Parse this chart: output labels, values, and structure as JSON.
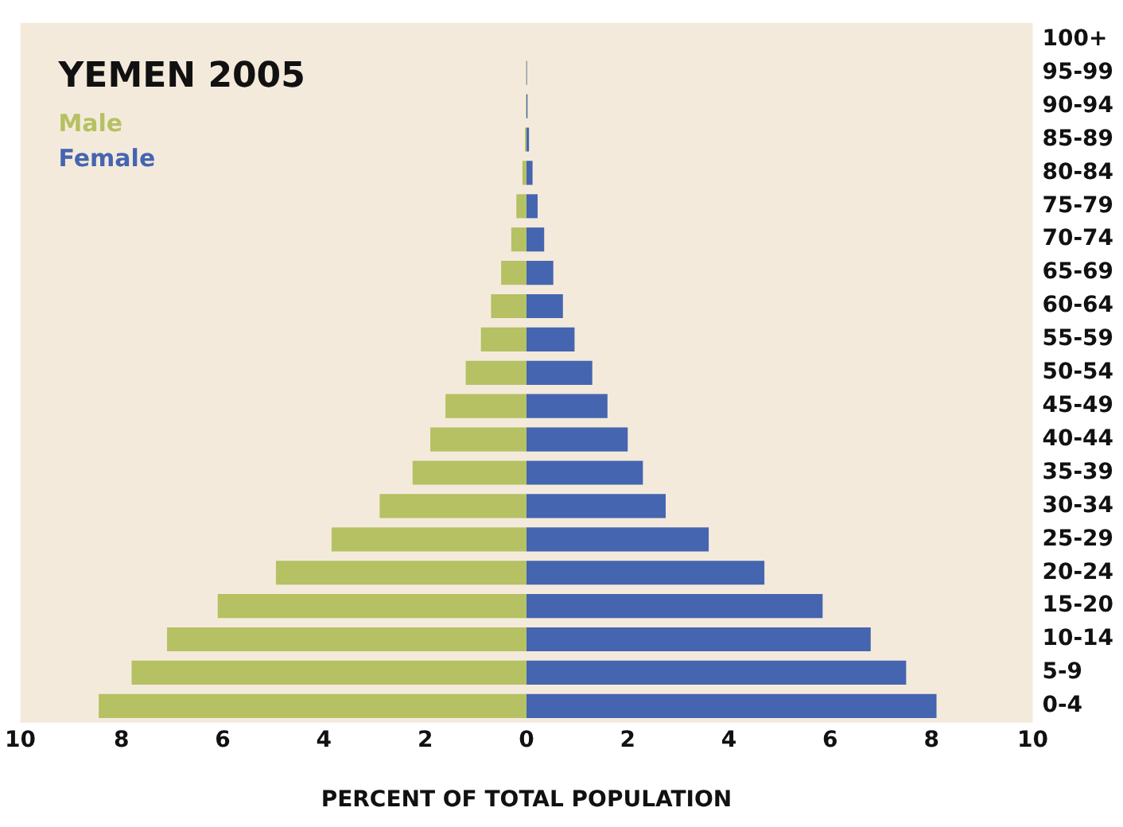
{
  "chart_data": {
    "type": "bar",
    "orientation": "horizontal",
    "stacked": true,
    "title": "YEMEN 2005",
    "xlabel": "PERCENT OF TOTAL POPULATION",
    "categories": [
      "100+",
      "95-99",
      "90-94",
      "85-89",
      "80-84",
      "75-79",
      "70-74",
      "65-69",
      "60-64",
      "55-59",
      "50-54",
      "45-49",
      "40-44",
      "35-39",
      "30-34",
      "25-29",
      "20-24",
      "15-20",
      "10-14",
      "5-9",
      "0-4"
    ],
    "series": [
      {
        "name": "Male",
        "color": "#b5c162",
        "values": [
          0,
          -0.01,
          -0.01,
          -0.03,
          -0.08,
          -0.2,
          -0.3,
          -0.5,
          -0.7,
          -0.9,
          -1.2,
          -1.6,
          -1.9,
          -2.25,
          -2.9,
          -3.85,
          -4.95,
          -6.1,
          -7.1,
          -7.8,
          -8.45
        ]
      },
      {
        "name": "Female",
        "color": "#4565b0",
        "values": [
          0,
          0.01,
          0.02,
          0.05,
          0.12,
          0.22,
          0.35,
          0.53,
          0.72,
          0.95,
          1.3,
          1.6,
          2.0,
          2.3,
          2.75,
          3.6,
          4.7,
          5.85,
          6.8,
          7.5,
          8.1
        ]
      }
    ],
    "xlim": [
      -10,
      10
    ],
    "xticks": [
      {
        "value": -10,
        "label": "10"
      },
      {
        "value": -8,
        "label": "8"
      },
      {
        "value": -6,
        "label": "6"
      },
      {
        "value": -4,
        "label": "4"
      },
      {
        "value": -2,
        "label": "2"
      },
      0,
      2,
      4,
      6,
      8,
      10
    ],
    "grid": false,
    "legend": "top left"
  }
}
